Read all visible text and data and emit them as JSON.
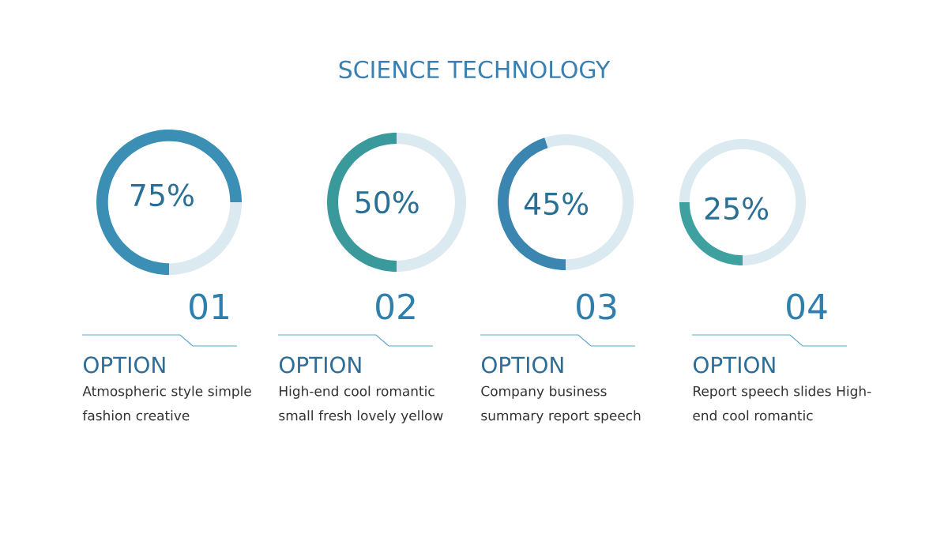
{
  "chart_data": [
    {
      "type": "donut",
      "title": "SCIENCE TECHNOLOGY",
      "categories": [
        null,
        null
      ],
      "values": [
        75,
        25
      ],
      "colors": [
        "#3b8fb5",
        "#dbe9f1"
      ],
      "value_labels": [
        "75%",
        null
      ],
      "annotations": [
        "01",
        "OPTION",
        "Atmospheric style simple fashion creative"
      ]
    },
    {
      "type": "donut",
      "categories": [
        null,
        null
      ],
      "values": [
        50,
        50
      ],
      "colors": [
        "#3a9a9b",
        "#dbe9f1"
      ],
      "value_labels": [
        "50%",
        null
      ],
      "annotations": [
        "02",
        "OPTION",
        "High-end cool romantic small fresh lovely yellow"
      ]
    },
    {
      "type": "donut",
      "categories": [
        null,
        null
      ],
      "values": [
        45,
        55
      ],
      "colors": [
        "#3a86b0",
        "#dbe9f1"
      ],
      "value_labels": [
        "45%",
        null
      ],
      "annotations": [
        "03",
        "OPTION",
        "Company business summary report speech"
      ]
    },
    {
      "type": "donut",
      "categories": [
        null,
        null
      ],
      "values": [
        25,
        75
      ],
      "colors": [
        "#3fa0a0",
        "#dbe9f1"
      ],
      "value_labels": [
        "25%",
        null
      ],
      "annotations": [
        "04",
        "OPTION",
        "Report speech slides High-end cool romantic"
      ]
    }
  ]
}
